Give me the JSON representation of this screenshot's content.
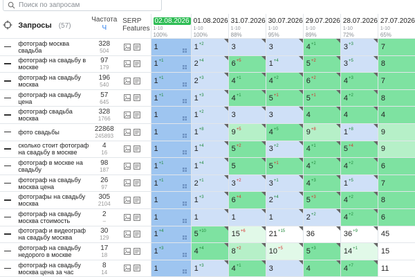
{
  "search": {
    "placeholder": "Поиск по запросам"
  },
  "header": {
    "queries_label": "Запросы",
    "queries_count": "(57)",
    "freq_label": "Частота",
    "freq_sub": "Ч",
    "serp_label_1": "SERP",
    "serp_label_2": "Features",
    "dates": [
      {
        "date": "02.08.2026",
        "range": "1-10",
        "pct": "100%",
        "active": true
      },
      {
        "date": "01.08.2026",
        "range": "1-10",
        "pct": "100%",
        "active": false
      },
      {
        "date": "31.07.2026",
        "range": "1-10",
        "pct": "88%",
        "active": false
      },
      {
        "date": "30.07.2026",
        "range": "1-10",
        "pct": "95%",
        "active": false
      },
      {
        "date": "29.07.2026",
        "range": "1-10",
        "pct": "89%",
        "active": false
      },
      {
        "date": "28.07.2026",
        "range": "1-10",
        "pct": "72%",
        "active": false
      },
      {
        "date": "27.07.2026",
        "range": "1-10",
        "pct": "65%",
        "active": false
      }
    ]
  },
  "colors": {
    "blue": "#9ec5f0",
    "lightblue": "#cfe0f7",
    "green": "#7ee2a1",
    "lightgreen": "#b6f0c8",
    "palegreen": "#e1f9e8",
    "mint": "#a2edc0",
    "up": "#1f8a3b",
    "down": "#d6302c",
    "accent": "#2fbd55"
  },
  "rows": [
    {
      "query": "фотограф москва свадьба",
      "freq": "328",
      "freq_sub": "504",
      "cells": [
        {
          "v": "1",
          "d": "",
          "dir": "",
          "bg": "blue",
          "grid": true
        },
        {
          "v": "1",
          "d": "+2",
          "dir": "up",
          "bg": "lightblue",
          "tri": true
        },
        {
          "v": "3",
          "d": "",
          "dir": "",
          "bg": "lightblue",
          "tri": true
        },
        {
          "v": "3",
          "d": "",
          "dir": "",
          "bg": "lightblue",
          "tri": true
        },
        {
          "v": "4",
          "d": "+1",
          "dir": "up",
          "bg": "green",
          "tri": true
        },
        {
          "v": "3",
          "d": "+3",
          "dir": "up",
          "bg": "lightblue",
          "tri": true
        },
        {
          "v": "7",
          "d": "",
          "dir": "",
          "bg": "green"
        }
      ]
    },
    {
      "query": "фотограф на свадьбу в москве",
      "freq": "97",
      "freq_sub": "179",
      "cells": [
        {
          "v": "1",
          "d": "+1",
          "dir": "up",
          "bg": "blue",
          "grid": true
        },
        {
          "v": "2",
          "d": "+4",
          "dir": "up",
          "bg": "lightblue",
          "tri": true
        },
        {
          "v": "6",
          "d": "+5",
          "dir": "down",
          "bg": "green",
          "tri": true
        },
        {
          "v": "1",
          "d": "+4",
          "dir": "up",
          "bg": "lightblue",
          "tri": true
        },
        {
          "v": "5",
          "d": "+2",
          "dir": "down",
          "bg": "green",
          "tri": true
        },
        {
          "v": "3",
          "d": "+5",
          "dir": "up",
          "bg": "lightblue",
          "tri": true
        },
        {
          "v": "8",
          "d": "",
          "dir": "",
          "bg": "green"
        }
      ]
    },
    {
      "query": "фотограф на свадьбу москва",
      "freq": "196",
      "freq_sub": "540",
      "cells": [
        {
          "v": "1",
          "d": "+1",
          "dir": "up",
          "bg": "blue",
          "grid": true
        },
        {
          "v": "2",
          "d": "+3",
          "dir": "up",
          "bg": "lightblue",
          "tri": true
        },
        {
          "v": "4",
          "d": "+1",
          "dir": "up",
          "bg": "green",
          "tri": true
        },
        {
          "v": "4",
          "d": "+2",
          "dir": "up",
          "bg": "green",
          "tri": true
        },
        {
          "v": "6",
          "d": "+2",
          "dir": "down",
          "bg": "green",
          "tri": true
        },
        {
          "v": "4",
          "d": "+3",
          "dir": "up",
          "bg": "green",
          "tri": true
        },
        {
          "v": "7",
          "d": "",
          "dir": "",
          "bg": "green"
        }
      ]
    },
    {
      "query": "фотограф на свадьбу цена",
      "freq": "57",
      "freq_sub": "645",
      "cells": [
        {
          "v": "1",
          "d": "+1",
          "dir": "up",
          "bg": "blue",
          "grid": true
        },
        {
          "v": "1",
          "d": "+3",
          "dir": "up",
          "bg": "lightblue",
          "tri": true
        },
        {
          "v": "4",
          "d": "+1",
          "dir": "up",
          "bg": "green",
          "tri": true
        },
        {
          "v": "5",
          "d": "+1",
          "dir": "down",
          "bg": "green",
          "tri": true
        },
        {
          "v": "5",
          "d": "+1",
          "dir": "down",
          "bg": "green",
          "tri": true
        },
        {
          "v": "4",
          "d": "+2",
          "dir": "up",
          "bg": "green",
          "tri": true
        },
        {
          "v": "8",
          "d": "",
          "dir": "",
          "bg": "green"
        }
      ]
    },
    {
      "query": "фотограф свадьба москва",
      "freq": "328",
      "freq_sub": "1766",
      "cells": [
        {
          "v": "1",
          "d": "",
          "dir": "",
          "bg": "blue",
          "grid": true
        },
        {
          "v": "1",
          "d": "+2",
          "dir": "up",
          "bg": "lightblue",
          "tri": true
        },
        {
          "v": "3",
          "d": "",
          "dir": "",
          "bg": "lightblue",
          "tri": true
        },
        {
          "v": "3",
          "d": "",
          "dir": "",
          "bg": "lightblue",
          "tri": true
        },
        {
          "v": "4",
          "d": "",
          "dir": "",
          "bg": "green",
          "tri": true
        },
        {
          "v": "4",
          "d": "",
          "dir": "",
          "bg": "green",
          "tri": true
        },
        {
          "v": "4",
          "d": "",
          "dir": "",
          "bg": "green"
        }
      ]
    },
    {
      "query": "фото свадьбы",
      "freq": "22868",
      "freq_sub": "245893",
      "cells": [
        {
          "v": "1",
          "d": "",
          "dir": "",
          "bg": "blue",
          "grid": true
        },
        {
          "v": "1",
          "d": "+8",
          "dir": "up",
          "bg": "lightblue",
          "tri": true
        },
        {
          "v": "9",
          "d": "+5",
          "dir": "down",
          "bg": "lightgreen",
          "tri": true
        },
        {
          "v": "4",
          "d": "+5",
          "dir": "up",
          "bg": "green",
          "tri": true
        },
        {
          "v": "9",
          "d": "+8",
          "dir": "down",
          "bg": "lightgreen",
          "tri": true
        },
        {
          "v": "1",
          "d": "+8",
          "dir": "up",
          "bg": "lightblue",
          "tri": true
        },
        {
          "v": "9",
          "d": "",
          "dir": "",
          "bg": "lightgreen"
        }
      ]
    },
    {
      "query": "сколько стоит фотограф на свадьбу в москве",
      "freq": "4",
      "freq_sub": "16",
      "cells": [
        {
          "v": "1",
          "d": "",
          "dir": "",
          "bg": "blue",
          "grid": true
        },
        {
          "v": "1",
          "d": "+4",
          "dir": "up",
          "bg": "lightblue",
          "tri": true
        },
        {
          "v": "5",
          "d": "+2",
          "dir": "down",
          "bg": "green",
          "tri": true
        },
        {
          "v": "3",
          "d": "+2",
          "dir": "up",
          "bg": "lightblue",
          "tri": true
        },
        {
          "v": "4",
          "d": "+1",
          "dir": "up",
          "bg": "green",
          "tri": true
        },
        {
          "v": "5",
          "d": "+4",
          "dir": "down",
          "bg": "green",
          "tri": true
        },
        {
          "v": "9",
          "d": "",
          "dir": "",
          "bg": "lightgreen"
        }
      ]
    },
    {
      "query": "фотограф в москве на свадьбу",
      "freq": "98",
      "freq_sub": "187",
      "cells": [
        {
          "v": "1",
          "d": "+1",
          "dir": "up",
          "bg": "blue",
          "grid": true
        },
        {
          "v": "1",
          "d": "+4",
          "dir": "up",
          "bg": "lightblue",
          "tri": true
        },
        {
          "v": "5",
          "d": "",
          "dir": "",
          "bg": "green",
          "tri": true
        },
        {
          "v": "5",
          "d": "+1",
          "dir": "down",
          "bg": "green",
          "tri": true
        },
        {
          "v": "4",
          "d": "+2",
          "dir": "up",
          "bg": "green",
          "tri": true
        },
        {
          "v": "4",
          "d": "+2",
          "dir": "up",
          "bg": "green",
          "tri": true
        },
        {
          "v": "6",
          "d": "",
          "dir": "",
          "bg": "green"
        }
      ]
    },
    {
      "query": "фотограф на свадьбу москва цена",
      "freq": "26",
      "freq_sub": "97",
      "cells": [
        {
          "v": "1",
          "d": "+1",
          "dir": "up",
          "bg": "blue",
          "grid": true
        },
        {
          "v": "2",
          "d": "+1",
          "dir": "up",
          "bg": "lightblue",
          "tri": true
        },
        {
          "v": "3",
          "d": "+2",
          "dir": "down",
          "bg": "lightblue",
          "tri": true
        },
        {
          "v": "3",
          "d": "+1",
          "dir": "up",
          "bg": "lightblue",
          "tri": true
        },
        {
          "v": "4",
          "d": "+3",
          "dir": "up",
          "bg": "green",
          "tri": true
        },
        {
          "v": "1",
          "d": "+5",
          "dir": "up",
          "bg": "lightblue",
          "tri": true
        },
        {
          "v": "7",
          "d": "",
          "dir": "",
          "bg": "green"
        }
      ]
    },
    {
      "query": "фотографы на свадьбу москва",
      "freq": "305",
      "freq_sub": "2104",
      "cells": [
        {
          "v": "1",
          "d": "",
          "dir": "",
          "bg": "blue",
          "grid": true
        },
        {
          "v": "1",
          "d": "+3",
          "dir": "up",
          "bg": "lightblue",
          "tri": true
        },
        {
          "v": "6",
          "d": "+4",
          "dir": "down",
          "bg": "green",
          "tri": true
        },
        {
          "v": "2",
          "d": "+4",
          "dir": "up",
          "bg": "lightblue",
          "tri": true
        },
        {
          "v": "5",
          "d": "+3",
          "dir": "down",
          "bg": "green",
          "tri": true
        },
        {
          "v": "4",
          "d": "+2",
          "dir": "up",
          "bg": "green",
          "tri": true
        },
        {
          "v": "8",
          "d": "",
          "dir": "",
          "bg": "green"
        }
      ]
    },
    {
      "query": "фотограф на свадьбу москва стоимость",
      "freq": "2",
      "freq_sub": "–",
      "cells": [
        {
          "v": "1",
          "d": "",
          "dir": "",
          "bg": "blue",
          "grid": true
        },
        {
          "v": "1",
          "d": "",
          "dir": "",
          "bg": "lightblue",
          "tri": true
        },
        {
          "v": "1",
          "d": "",
          "dir": "",
          "bg": "lightblue",
          "tri": true
        },
        {
          "v": "1",
          "d": "",
          "dir": "",
          "bg": "lightblue",
          "tri": true
        },
        {
          "v": "2",
          "d": "+2",
          "dir": "up",
          "bg": "lightblue",
          "tri": true
        },
        {
          "v": "4",
          "d": "+2",
          "dir": "up",
          "bg": "green",
          "tri": true
        },
        {
          "v": "6",
          "d": "",
          "dir": "",
          "bg": "green"
        }
      ]
    },
    {
      "query": "фотограф и видеограф на свадьбу москва",
      "freq": "30",
      "freq_sub": "129",
      "cells": [
        {
          "v": "1",
          "d": "+4",
          "dir": "up",
          "bg": "blue",
          "grid": true
        },
        {
          "v": "5",
          "d": "+10",
          "dir": "up",
          "bg": "green",
          "tri": true
        },
        {
          "v": "15",
          "d": "+6",
          "dir": "down",
          "bg": "palegreen",
          "tri": true
        },
        {
          "v": "21",
          "d": "+15",
          "dir": "up",
          "bg": "white",
          "tri": true
        },
        {
          "v": "36",
          "d": "",
          "dir": "",
          "bg": "white",
          "tri": true
        },
        {
          "v": "36",
          "d": "+9",
          "dir": "up",
          "bg": "white",
          "tri": true
        },
        {
          "v": "45",
          "d": "",
          "dir": "",
          "bg": "white"
        }
      ]
    },
    {
      "query": "фотограф на свадьбу недорого в москве",
      "freq": "17",
      "freq_sub": "18",
      "cells": [
        {
          "v": "1",
          "d": "+3",
          "dir": "up",
          "bg": "blue",
          "grid": true
        },
        {
          "v": "4",
          "d": "+4",
          "dir": "up",
          "bg": "green",
          "tri": true
        },
        {
          "v": "8",
          "d": "+2",
          "dir": "down",
          "bg": "lightgreen",
          "tri": true
        },
        {
          "v": "10",
          "d": "+5",
          "dir": "down",
          "bg": "palegreen",
          "tri": true
        },
        {
          "v": "5",
          "d": "+3",
          "dir": "up",
          "bg": "green",
          "tri": true
        },
        {
          "v": "14",
          "d": "+1",
          "dir": "up",
          "bg": "palegreen",
          "tri": true
        },
        {
          "v": "15",
          "d": "",
          "dir": "",
          "bg": "white"
        }
      ]
    },
    {
      "query": "фотограф на свадьбу москва цена за час",
      "freq": "8",
      "freq_sub": "14",
      "cells": [
        {
          "v": "1",
          "d": "",
          "dir": "",
          "bg": "blue",
          "grid": true
        },
        {
          "v": "1",
          "d": "+3",
          "dir": "up",
          "bg": "lightblue",
          "tri": true
        },
        {
          "v": "4",
          "d": "+1",
          "dir": "up",
          "bg": "green",
          "tri": true
        },
        {
          "v": "3",
          "d": "",
          "dir": "",
          "bg": "lightblue",
          "tri": true
        },
        {
          "v": "4",
          "d": "",
          "dir": "",
          "bg": "green",
          "tri": true
        },
        {
          "v": "4",
          "d": "+7",
          "dir": "up",
          "bg": "green",
          "tri": true
        },
        {
          "v": "11",
          "d": "",
          "dir": "",
          "bg": "white"
        }
      ]
    }
  ]
}
